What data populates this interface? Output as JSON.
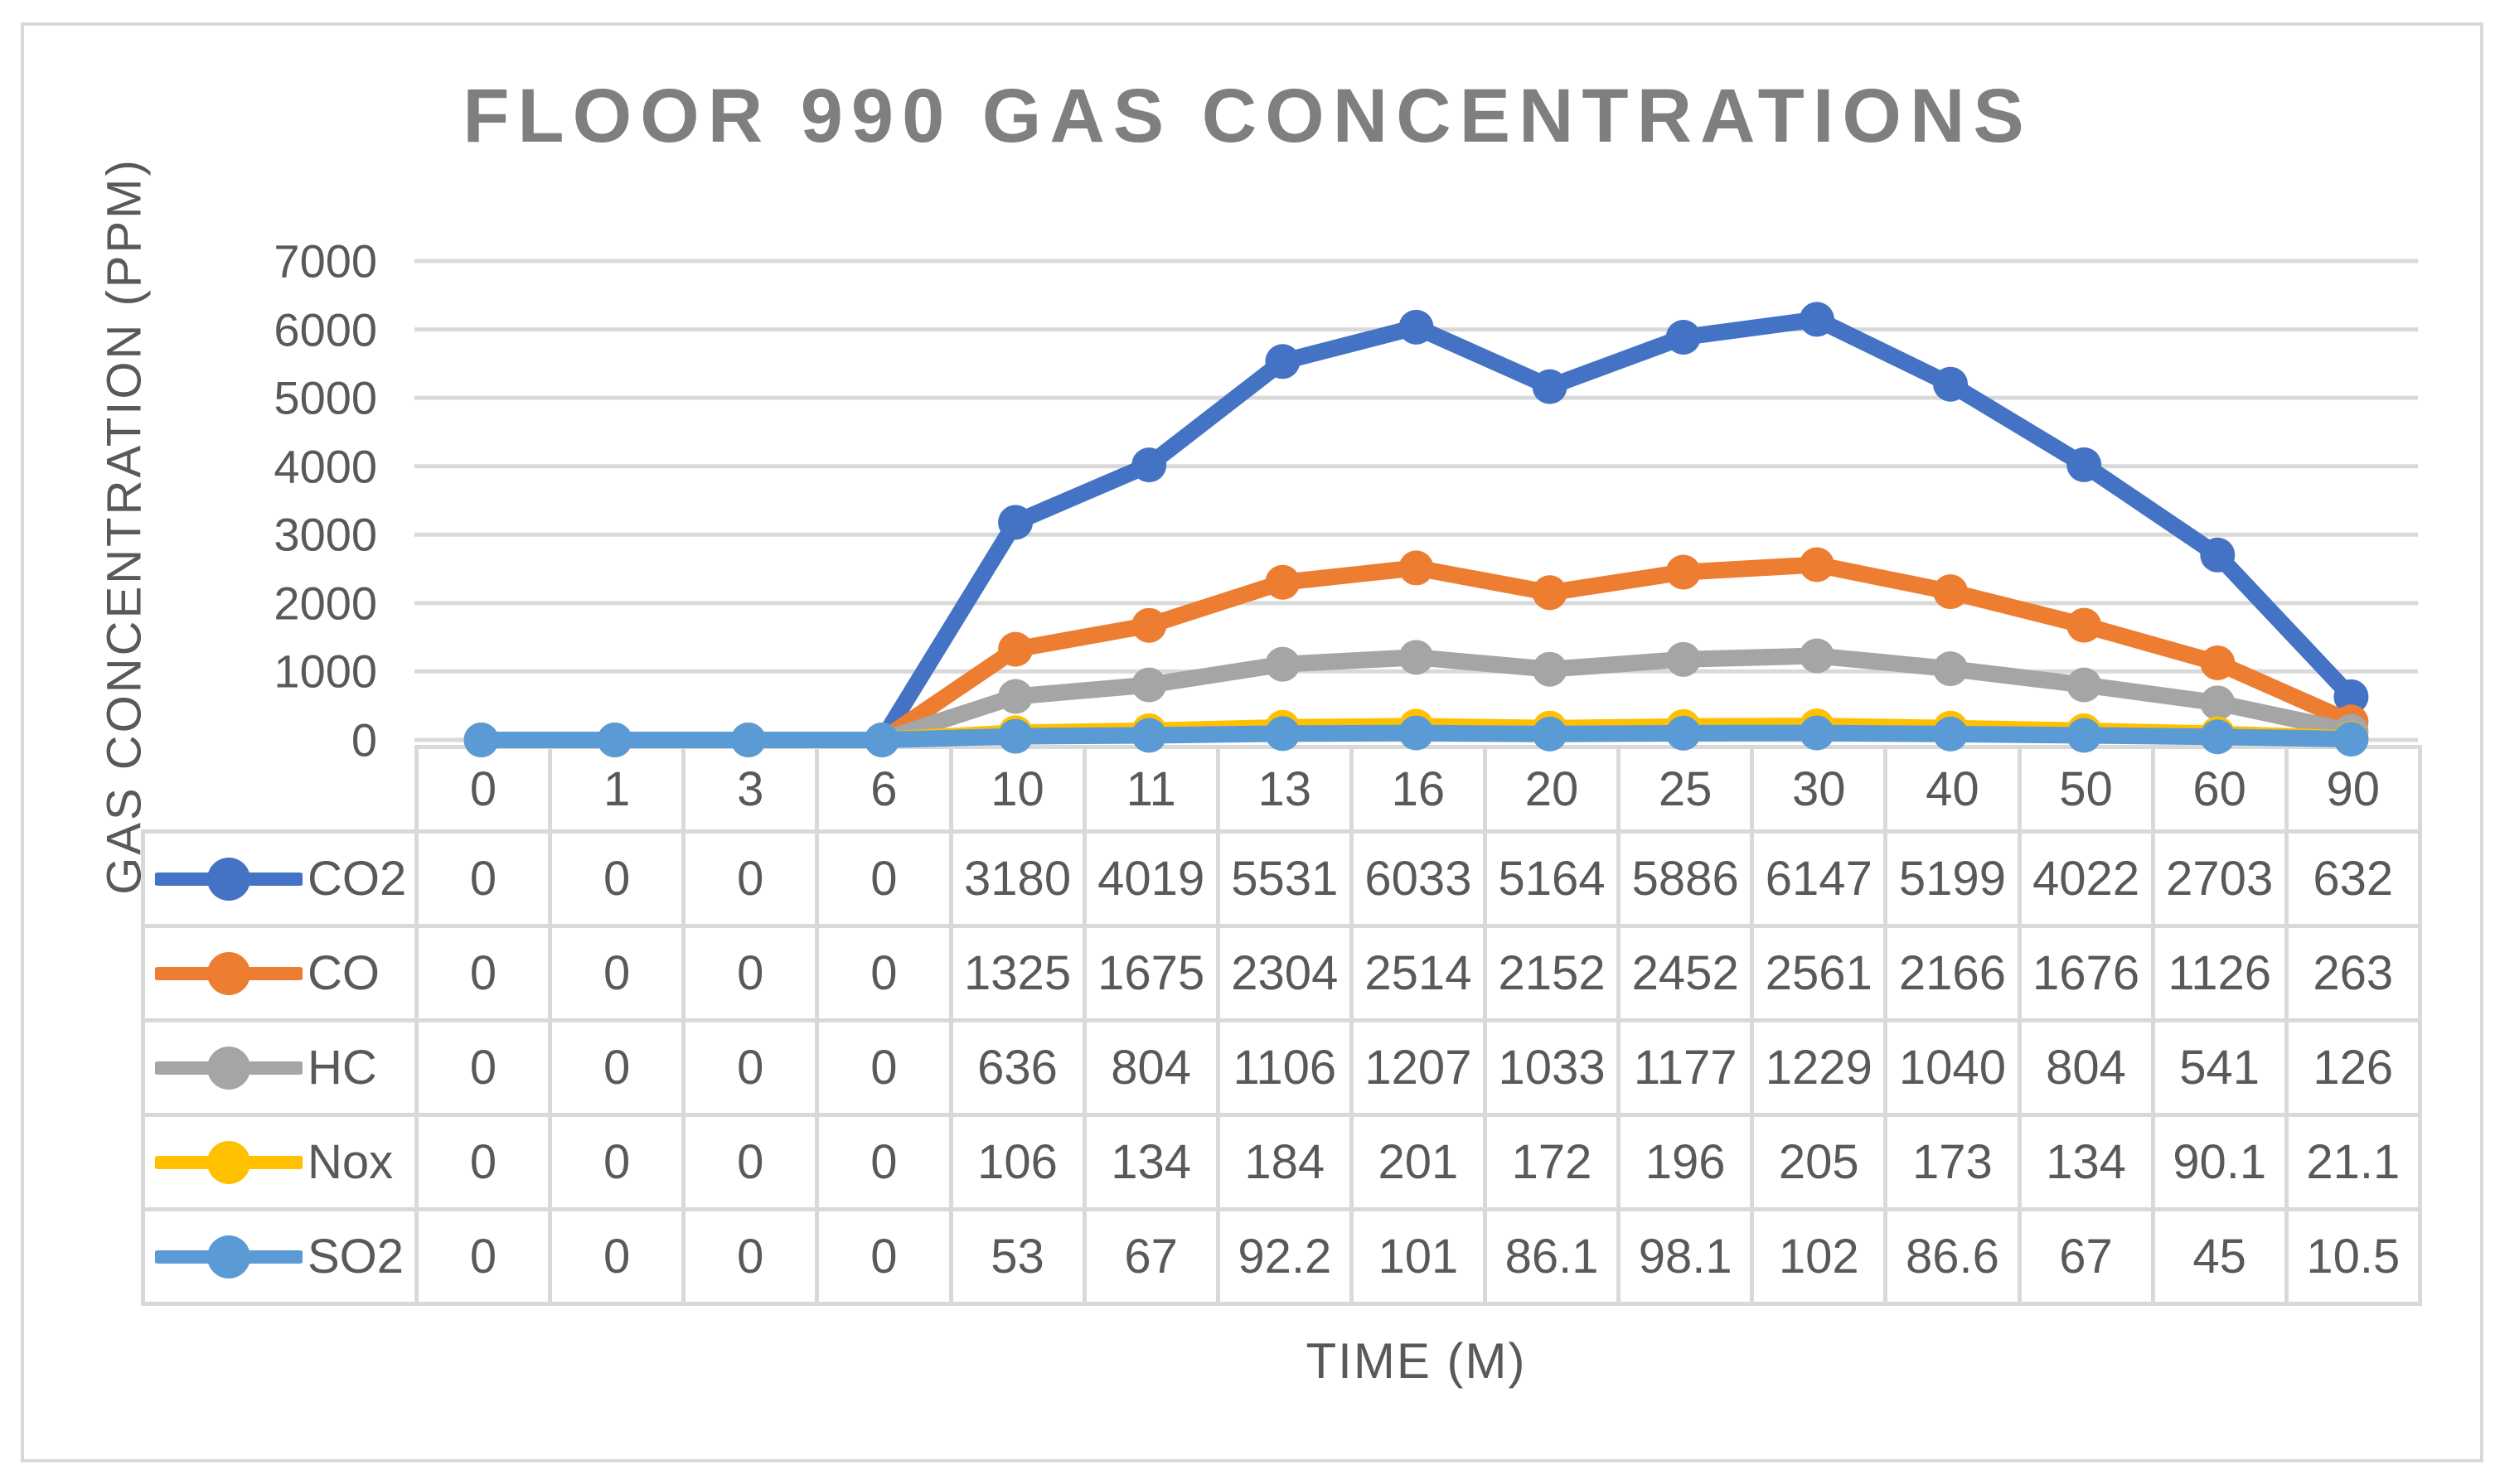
{
  "page": {
    "background": "#FFFFFF",
    "frame_border_color": "#D9D9D9",
    "title_color": "#7F7F7F",
    "axis_text_color": "#595959",
    "gridline_color": "#D9D9D9"
  },
  "chart_data": {
    "type": "line",
    "title": "FLOOR 990 GAS CONCENTRATIONS",
    "xlabel": "TIME (M)",
    "ylabel": "GAS CONCENTRATION (PPM)",
    "categories": [
      "0",
      "1",
      "3",
      "6",
      "10",
      "11",
      "13",
      "16",
      "20",
      "25",
      "30",
      "40",
      "50",
      "60",
      "90"
    ],
    "y_ticks": [
      0,
      1000,
      2000,
      3000,
      4000,
      5000,
      6000,
      7000
    ],
    "y_tick_labels": [
      "0",
      "1000",
      "2000",
      "3000",
      "4000",
      "5000",
      "6000",
      "7000"
    ],
    "ylim": [
      0,
      7000
    ],
    "grid": "horizontal",
    "marker": "circle",
    "legend_position": "table-left",
    "series": [
      {
        "name": "CO2",
        "color": "#4472C4",
        "values": [
          0,
          0,
          0,
          0,
          3180,
          4019,
          5531,
          6033,
          5164,
          5886,
          6147,
          5199,
          4022,
          2703,
          632
        ]
      },
      {
        "name": "CO",
        "color": "#ED7D31",
        "values": [
          0,
          0,
          0,
          0,
          1325,
          1675,
          2304,
          2514,
          2152,
          2452,
          2561,
          2166,
          1676,
          1126,
          263
        ]
      },
      {
        "name": "HC",
        "color": "#A5A5A5",
        "values": [
          0,
          0,
          0,
          0,
          636,
          804,
          1106,
          1207,
          1033,
          1177,
          1229,
          1040,
          804,
          541,
          126
        ]
      },
      {
        "name": "Nox",
        "color": "#FFC000",
        "values": [
          0,
          0,
          0,
          0,
          106,
          134,
          184,
          201,
          172,
          196,
          205,
          173,
          134,
          90.1,
          21.1
        ]
      },
      {
        "name": "SO2",
        "color": "#5B9BD5",
        "values": [
          0,
          0,
          0,
          0,
          53,
          67,
          92.2,
          101,
          86.1,
          98.1,
          102,
          86.6,
          67,
          45,
          10.5
        ]
      }
    ]
  }
}
